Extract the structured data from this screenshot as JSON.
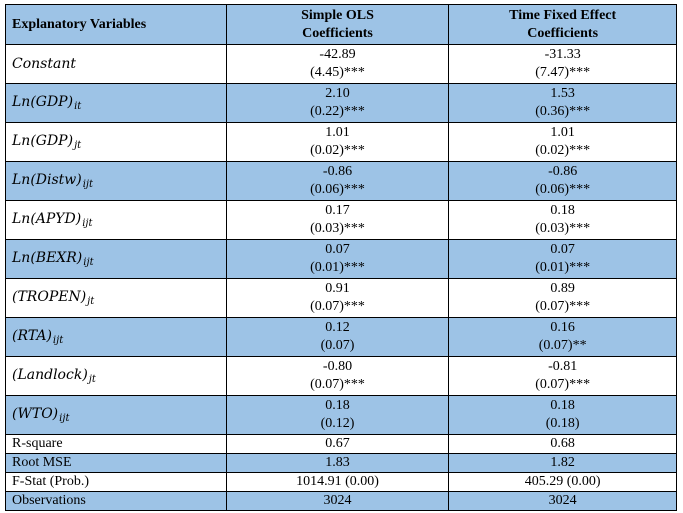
{
  "header": {
    "col1": "Explanatory Variables",
    "col2_line1": "Simple OLS",
    "col2_line2": "Coefficients",
    "col3_line1": "Time Fixed Effect",
    "col3_line2": "Coefficients"
  },
  "rows": [
    {
      "label": "Constant",
      "sub": "",
      "ols_coef": "-42.89",
      "ols_se": "(4.45)***",
      "tfe_coef": "-31.33",
      "tfe_se": "(7.47)***"
    },
    {
      "label": "Ln(GDP)",
      "sub": "it",
      "ols_coef": "2.10",
      "ols_se": "(0.22)***",
      "tfe_coef": "1.53",
      "tfe_se": "(0.36)***"
    },
    {
      "label": "Ln(GDP)",
      "sub": "jt",
      "ols_coef": "1.01",
      "ols_se": "(0.02)***",
      "tfe_coef": "1.01",
      "tfe_se": "(0.02)***"
    },
    {
      "label": "Ln(Distw)",
      "sub": "ijt",
      "ols_coef": "-0.86",
      "ols_se": "(0.06)***",
      "tfe_coef": "-0.86",
      "tfe_se": "(0.06)***"
    },
    {
      "label": "Ln(APYD)",
      "sub": "ijt",
      "ols_coef": "0.17",
      "ols_se": "(0.03)***",
      "tfe_coef": "0.18",
      "tfe_se": "(0.03)***"
    },
    {
      "label": "Ln(BEXR)",
      "sub": "ijt",
      "ols_coef": "0.07",
      "ols_se": "(0.01)***",
      "tfe_coef": "0.07",
      "tfe_se": "(0.01)***"
    },
    {
      "label": "(TROPEN)",
      "sub": "jt",
      "ols_coef": "0.91",
      "ols_se": "(0.07)***",
      "tfe_coef": "0.89",
      "tfe_se": "(0.07)***"
    },
    {
      "label": "(RTA)",
      "sub": "ijt",
      "ols_coef": "0.12",
      "ols_se": "(0.07)",
      "tfe_coef": "0.16",
      "tfe_se": "(0.07)**"
    },
    {
      "label": "(Landlock)",
      "sub": "jt",
      "ols_coef": "-0.80",
      "ols_se": "(0.07)***",
      "tfe_coef": "-0.81",
      "tfe_se": "(0.07)***"
    },
    {
      "label": "(WTO)",
      "sub": "ijt",
      "ols_coef": "0.18",
      "ols_se": "(0.12)",
      "tfe_coef": "0.18",
      "tfe_se": "(0.18)"
    }
  ],
  "stats": [
    {
      "label": "R-square",
      "ols": "0.67",
      "tfe": "0.68"
    },
    {
      "label": "Root MSE",
      "ols": "1.83",
      "tfe": "1.82"
    },
    {
      "label": "F-Stat (Prob.)",
      "ols": "1014.91 (0.00)",
      "tfe": "405.29 (0.00)"
    },
    {
      "label": "Observations",
      "ols": "3024",
      "tfe": "3024"
    }
  ],
  "colors": {
    "header_fill": "#9dc3e6",
    "border": "#000000"
  }
}
